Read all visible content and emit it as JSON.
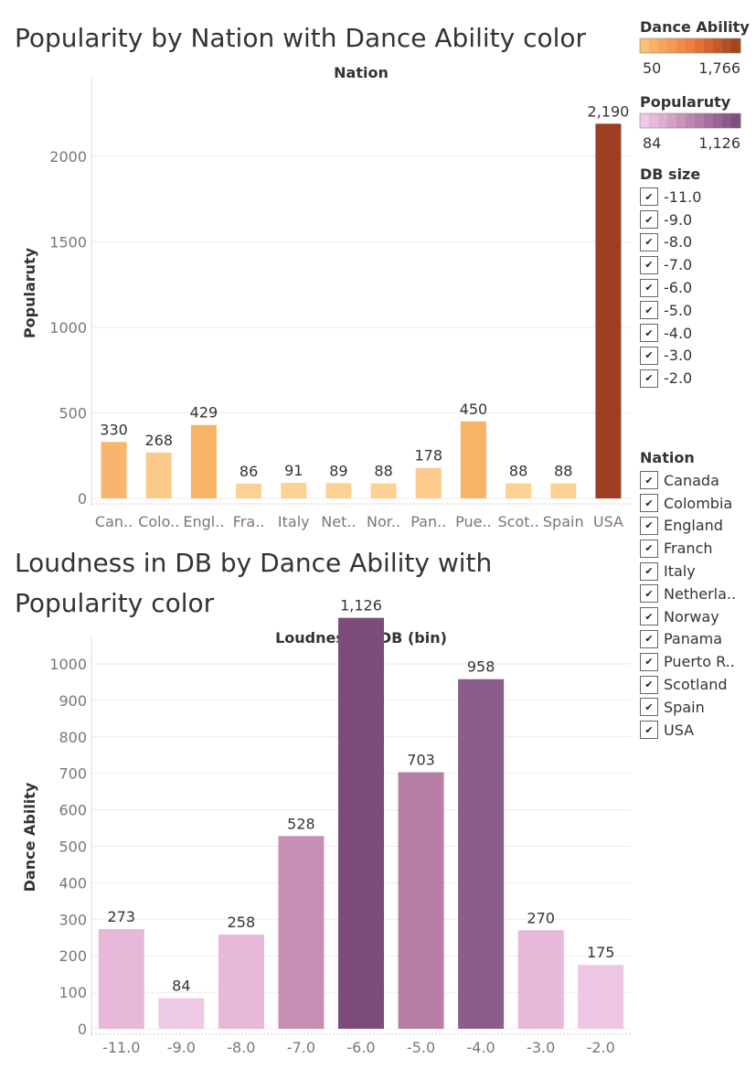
{
  "chart_data": [
    {
      "type": "bar",
      "title": "Popularity by Nation with Dance Ability color",
      "header": "Nation",
      "ylabel": "Popularuty",
      "ylim": [
        0,
        2400
      ],
      "yticks": [
        0,
        500,
        1000,
        1500,
        2000
      ],
      "color_by": "Dance Ability",
      "categories": [
        "Can..",
        "Colo..",
        "Engl..",
        "Fra..",
        "Italy",
        "Net..",
        "Nor..",
        "Pan..",
        "Pue..",
        "Scot..",
        "Spain",
        "USA"
      ],
      "values": [
        330,
        268,
        429,
        86,
        91,
        89,
        88,
        178,
        450,
        88,
        88,
        2190
      ],
      "value_labels": [
        "330",
        "268",
        "429",
        "86",
        "91",
        "89",
        "88",
        "178",
        "450",
        "88",
        "88",
        "2,190"
      ],
      "colors": [
        "#f7b66b",
        "#fbc98a",
        "#f7b466",
        "#fdd094",
        "#fdd094",
        "#fdd094",
        "#fdd094",
        "#fcca8c",
        "#f7b467",
        "#fdd094",
        "#fdd094",
        "#9e3d22"
      ]
    },
    {
      "type": "bar",
      "title": "Loudness in DB by Dance Ability with Popularity color",
      "header": "Loudness In DB (bin)",
      "ylabel": "Dance Ability",
      "ylim": [
        0,
        1050
      ],
      "yticks": [
        0,
        100,
        200,
        300,
        400,
        500,
        600,
        700,
        800,
        900,
        1000
      ],
      "color_by": "Popularuty",
      "categories": [
        "-11.0",
        "-9.0",
        "-8.0",
        "-7.0",
        "-6.0",
        "-5.0",
        "-4.0",
        "-3.0",
        "-2.0"
      ],
      "values": [
        273,
        84,
        258,
        528,
        1126,
        703,
        958,
        270,
        175
      ],
      "value_labels": [
        "273",
        "84",
        "258",
        "528",
        "1,126",
        "703",
        "958",
        "270",
        "175"
      ],
      "colors": [
        "#e7b8d8",
        "#edcbe6",
        "#e7b8d8",
        "#c78fb3",
        "#7d4c7a",
        "#b77fa5",
        "#8c5c8b",
        "#e7b8d8",
        "#edc7e3"
      ]
    }
  ],
  "legends": {
    "dance_ability": {
      "title": "Dance Ability",
      "min": "50",
      "max": "1,766",
      "colors": [
        "#f9c079",
        "#f7b26a",
        "#f6a55e",
        "#f59853",
        "#f38b48",
        "#f07e3e",
        "#e37236",
        "#d3652f",
        "#c25a2a",
        "#b14f26",
        "#a14422"
      ]
    },
    "popularity": {
      "title": "Popularuty",
      "min": "84",
      "max": "1,126",
      "colors": [
        "#efc9e6",
        "#e6bbda",
        "#dcaed0",
        "#d2a1c5",
        "#c894ba",
        "#bd87af",
        "#b17ba5",
        "#a56f9b",
        "#976590",
        "#895b86",
        "#7c517c"
      ]
    }
  },
  "filters": {
    "db_size": {
      "title": "DB size",
      "check_glyph": "✔",
      "items": [
        "-11.0",
        "-9.0",
        "-8.0",
        "-7.0",
        "-6.0",
        "-5.0",
        "-4.0",
        "-3.0",
        "-2.0"
      ]
    },
    "nation": {
      "title": "Nation",
      "check_glyph": "✔",
      "items": [
        "Canada",
        "Colombia",
        "England",
        "Franch",
        "Italy",
        "Netherla..",
        "Norway",
        "Panama",
        "Puerto R..",
        "Scotland",
        "Spain",
        "USA"
      ]
    }
  }
}
